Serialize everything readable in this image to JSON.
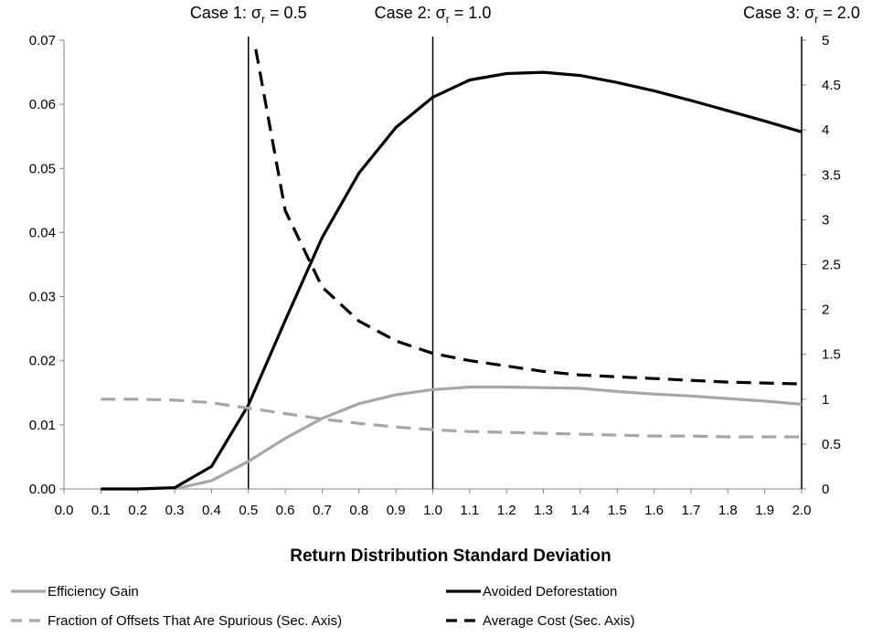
{
  "chart_data": {
    "type": "line",
    "title": "",
    "xlabel": "Return Distribution Standard Deviation",
    "ylabel": "",
    "y2label": "",
    "xlim": [
      0.0,
      2.0
    ],
    "ylim": [
      0.0,
      0.07
    ],
    "y2lim": [
      0,
      5
    ],
    "x_ticks": [
      "0.0",
      "0.1",
      "0.2",
      "0.3",
      "0.4",
      "0.5",
      "0.6",
      "0.7",
      "0.8",
      "0.9",
      "1.0",
      "1.1",
      "1.2",
      "1.3",
      "1.4",
      "1.5",
      "1.6",
      "1.7",
      "1.8",
      "1.9",
      "2.0"
    ],
    "y_ticks": [
      "0.00",
      "0.01",
      "0.02",
      "0.03",
      "0.04",
      "0.05",
      "0.06",
      "0.07"
    ],
    "y2_ticks": [
      "0",
      "0.5",
      "1",
      "1.5",
      "2",
      "2.5",
      "3",
      "3.5",
      "4",
      "4.5",
      "5"
    ],
    "grid": false,
    "legend_position": "bottom",
    "annotations": [
      {
        "x": 0.5,
        "label": "Case 1: σ",
        "sub": "r",
        "value": " = 0.5"
      },
      {
        "x": 1.0,
        "label": "Case 2: σ",
        "sub": "r",
        "value": " = 1.0"
      },
      {
        "x": 2.0,
        "label": "Case 3: σ",
        "sub": "r",
        "value": " = 2.0"
      }
    ],
    "series": [
      {
        "name": "Efficiency Gain",
        "axis": "primary",
        "color": "#a6a6a6",
        "style": "solid",
        "x": [
          0.3,
          0.4,
          0.5,
          0.6,
          0.7,
          0.8,
          0.9,
          1.0,
          1.1,
          1.2,
          1.3,
          1.4,
          1.5,
          1.6,
          1.7,
          1.8,
          1.9,
          2.0
        ],
        "values": [
          0.0,
          0.0013,
          0.0043,
          0.0079,
          0.011,
          0.0133,
          0.0147,
          0.0155,
          0.0159,
          0.0159,
          0.0158,
          0.0157,
          0.0152,
          0.0148,
          0.0145,
          0.0141,
          0.0137,
          0.0132
        ]
      },
      {
        "name": "Avoided Deforestation",
        "axis": "primary",
        "color": "#000000",
        "style": "solid",
        "x": [
          0.1,
          0.2,
          0.3,
          0.4,
          0.5,
          0.6,
          0.7,
          0.8,
          0.9,
          1.0,
          1.1,
          1.2,
          1.3,
          1.4,
          1.5,
          1.6,
          1.7,
          1.8,
          1.9,
          2.0
        ],
        "values": [
          0.0,
          0.0,
          0.0002,
          0.0035,
          0.0131,
          0.0263,
          0.0392,
          0.0493,
          0.0564,
          0.0611,
          0.0638,
          0.0648,
          0.065,
          0.0645,
          0.0634,
          0.0621,
          0.0606,
          0.059,
          0.0574,
          0.0557
        ]
      },
      {
        "name": "Fraction of Offsets That Are Spurious (Sec. Axis)",
        "axis": "secondary",
        "color": "#a6a6a6",
        "style": "dashed",
        "x": [
          0.1,
          0.2,
          0.3,
          0.4,
          0.5,
          0.6,
          0.7,
          0.8,
          0.9,
          1.0,
          1.1,
          1.2,
          1.3,
          1.4,
          1.5,
          1.6,
          1.7,
          1.8,
          1.9,
          2.0
        ],
        "values": [
          1.0,
          1.0,
          0.99,
          0.96,
          0.9,
          0.84,
          0.78,
          0.73,
          0.69,
          0.66,
          0.64,
          0.63,
          0.62,
          0.61,
          0.6,
          0.59,
          0.59,
          0.58,
          0.58,
          0.58
        ]
      },
      {
        "name": "Average Cost (Sec. Axis)",
        "axis": "secondary",
        "color": "#000000",
        "style": "dashed",
        "x": [
          0.52,
          0.6,
          0.7,
          0.8,
          0.9,
          1.0,
          1.1,
          1.2,
          1.3,
          1.4,
          1.5,
          1.6,
          1.7,
          1.8,
          1.9,
          2.0
        ],
        "values": [
          4.9,
          3.1,
          2.25,
          1.87,
          1.65,
          1.51,
          1.43,
          1.37,
          1.31,
          1.27,
          1.25,
          1.23,
          1.21,
          1.19,
          1.18,
          1.17
        ]
      }
    ]
  }
}
